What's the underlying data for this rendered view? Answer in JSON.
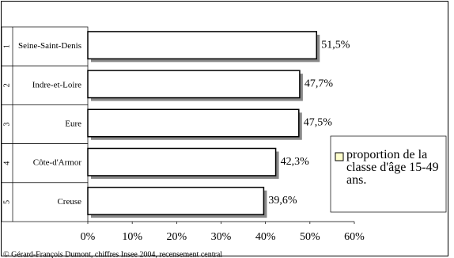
{
  "chart_data": {
    "type": "bar",
    "orientation": "horizontal",
    "ranks": [
      "1",
      "2",
      "3",
      "4",
      "5"
    ],
    "categories": [
      "Seine-Saint-Denis",
      "Indre-et-Loire",
      "Eure",
      "Côte-d'Armor",
      "Creuse"
    ],
    "series": [
      {
        "name": "proportion de la classe d'âge 15-49 ans.",
        "color": "#ffffcc",
        "values": [
          51.5,
          47.7,
          47.5,
          42.3,
          39.6
        ],
        "value_labels": [
          "51,5%",
          "47,7%",
          "47,5%",
          "42,3%",
          "39,6%"
        ]
      }
    ],
    "xlim": [
      0,
      60
    ],
    "xticks": [
      {
        "value": 0,
        "label": "0%"
      },
      {
        "value": 10,
        "label": "10%"
      },
      {
        "value": 20,
        "label": "20%"
      },
      {
        "value": 30,
        "label": "30%"
      },
      {
        "value": 40,
        "label": "40%"
      },
      {
        "value": 50,
        "label": "50%"
      },
      {
        "value": 60,
        "label": "60%"
      }
    ],
    "legend": "right",
    "source": "© Gérard-François Dumont, chiffres Insee 2004, recensement central"
  }
}
